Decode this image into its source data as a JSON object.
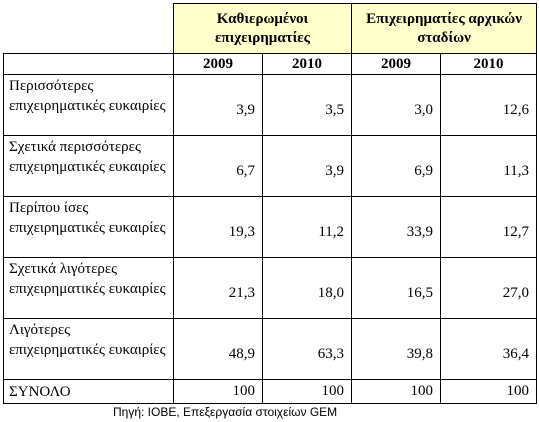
{
  "table": {
    "group_headers": [
      {
        "label": "Καθιερωμένοι επιχειρηματίες"
      },
      {
        "label": "Επιχειρηματίες αρχικών σταδίων"
      }
    ],
    "years": [
      "2009",
      "2010",
      "2009",
      "2010"
    ],
    "rows": [
      {
        "label": "Περισσότερες επιχειρηματικές ευκαιρίες",
        "values": [
          "3,9",
          "3,5",
          "3,0",
          "12,6"
        ]
      },
      {
        "label": "Σχετικά περισσότερες επιχειρηματικές ευκαιρίες",
        "values": [
          "6,7",
          "3,9",
          "6,9",
          "11,3"
        ]
      },
      {
        "label": "Περίπου ίσες επιχειρηματικές ευκαιρίες",
        "values": [
          "19,3",
          "11,2",
          "33,9",
          "12,7"
        ]
      },
      {
        "label": "Σχετικά λιγότερες επιχειρηματικές ευκαιρίες",
        "values": [
          "21,3",
          "18,0",
          "16,5",
          "27,0"
        ]
      },
      {
        "label": "Λιγότερες επιχειρηματικές ευκαιρίες",
        "values": [
          "48,9",
          "63,3",
          "39,8",
          "36,4"
        ]
      }
    ],
    "total": {
      "label": "ΣΥΝΟΛΟ",
      "values": [
        "100",
        "100",
        "100",
        "100"
      ]
    }
  },
  "source_note": "Πηγή: ΙΟΒΕ, Επεξεργασία στοιχείων GEM",
  "colors": {
    "header_fill": "#ffffcc",
    "border": "#000000"
  }
}
